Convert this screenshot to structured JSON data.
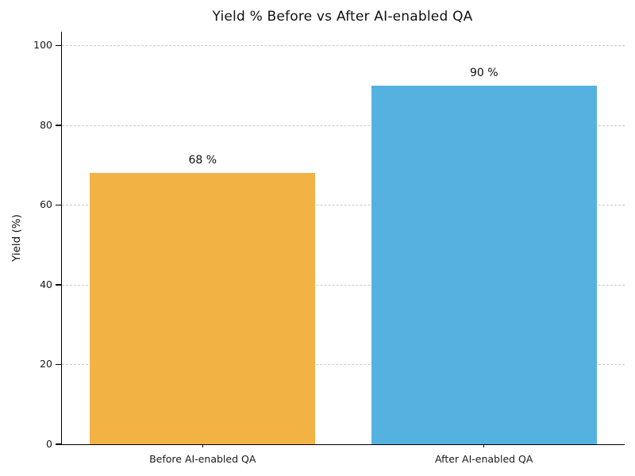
{
  "chart_data": {
    "type": "bar",
    "title": "Yield % Before vs After AI-enabled QA",
    "ylabel": "Yield (%)",
    "xlabel": "",
    "categories": [
      "Before AI-enabled QA",
      "After AI-enabled QA"
    ],
    "values": [
      68,
      90
    ],
    "value_labels": [
      "68 %",
      "90 %"
    ],
    "bar_colors": [
      "#F2B344",
      "#55B2E0"
    ],
    "yticks": [
      0,
      20,
      40,
      60,
      80,
      100
    ],
    "ylim": [
      0,
      103.5
    ],
    "bar_width_fraction": 0.8,
    "grid": "horizontal-dashed",
    "legend": "none"
  },
  "colors": {
    "background": "#ffffff",
    "spine": "#000000",
    "gridline": "#c8c8c8",
    "text": "#1a1a1a"
  }
}
